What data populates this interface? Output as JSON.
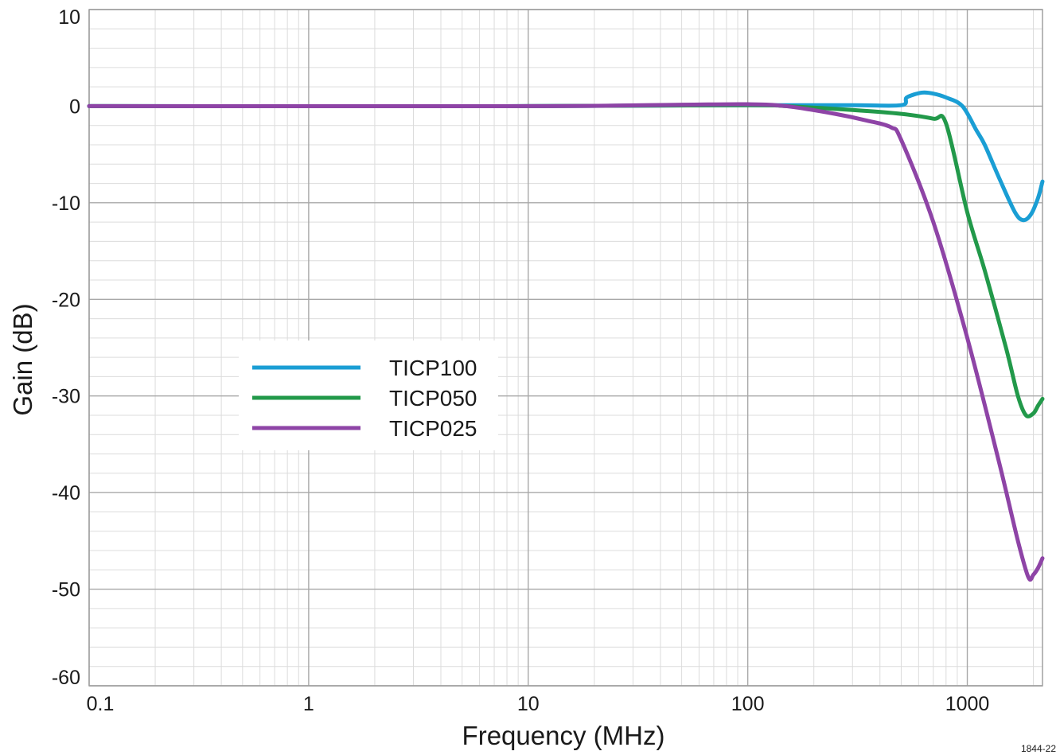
{
  "chart_data": {
    "type": "line",
    "title": "",
    "xlabel": "Frequency (MHz)",
    "ylabel": "Gain (dB)",
    "xscale": "log",
    "xlim": [
      0.1,
      2200
    ],
    "ylim": [
      -60,
      10
    ],
    "grid": true,
    "legend_position": "center-left",
    "x_tick_labels": [
      "0.1",
      "1",
      "10",
      "100",
      "1000"
    ],
    "x_tick_values": [
      0.1,
      1,
      10,
      100,
      1000
    ],
    "y_tick_labels": [
      "10",
      "0",
      "-10",
      "-20",
      "-30",
      "-40",
      "-50",
      "-60"
    ],
    "y_tick_values": [
      10,
      0,
      -10,
      -20,
      -30,
      -40,
      -50,
      -60
    ],
    "series": [
      {
        "name": "TICP100",
        "color": "#1a9ed4",
        "points": [
          [
            0.1,
            0
          ],
          [
            10,
            0
          ],
          [
            100,
            0.1
          ],
          [
            300,
            0.1
          ],
          [
            500,
            0.1
          ],
          [
            530,
            0.9
          ],
          [
            620,
            1.4
          ],
          [
            700,
            1.3
          ],
          [
            800,
            0.9
          ],
          [
            950,
            0
          ],
          [
            1100,
            -2.5
          ],
          [
            1200,
            -4
          ],
          [
            1400,
            -7.5
          ],
          [
            1650,
            -11
          ],
          [
            1800,
            -11.8
          ],
          [
            1950,
            -11.2
          ],
          [
            2100,
            -9.5
          ],
          [
            2200,
            -7.8
          ]
        ]
      },
      {
        "name": "TICP050",
        "color": "#22994a",
        "points": [
          [
            0.1,
            0
          ],
          [
            10,
            0
          ],
          [
            100,
            0.1
          ],
          [
            150,
            0
          ],
          [
            300,
            -0.4
          ],
          [
            500,
            -0.8
          ],
          [
            700,
            -1.3
          ],
          [
            800,
            -1.8
          ],
          [
            1000,
            -11
          ],
          [
            1200,
            -17
          ],
          [
            1500,
            -25
          ],
          [
            1700,
            -30
          ],
          [
            1850,
            -32
          ],
          [
            2000,
            -31.8
          ],
          [
            2100,
            -31
          ],
          [
            2200,
            -30.3
          ]
        ]
      },
      {
        "name": "TICP025",
        "color": "#8e44a6",
        "points": [
          [
            0.1,
            0
          ],
          [
            10,
            0
          ],
          [
            50,
            0.15
          ],
          [
            100,
            0.2
          ],
          [
            150,
            0
          ],
          [
            250,
            -0.8
          ],
          [
            350,
            -1.5
          ],
          [
            450,
            -2.2
          ],
          [
            500,
            -3.5
          ],
          [
            700,
            -12
          ],
          [
            1000,
            -24
          ],
          [
            1400,
            -37
          ],
          [
            1700,
            -45
          ],
          [
            1900,
            -48.8
          ],
          [
            2000,
            -48.5
          ],
          [
            2100,
            -47.8
          ],
          [
            2200,
            -46.8
          ]
        ]
      }
    ]
  },
  "figure_id": "1844-22"
}
